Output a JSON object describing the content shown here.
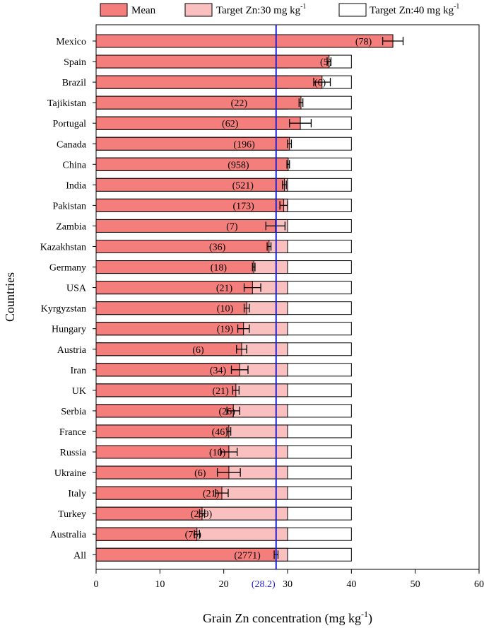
{
  "chart_data": {
    "type": "bar",
    "orientation": "horizontal",
    "xlabel": "Grain Zn concentration (mg kg",
    "xlabel_sup": "-1",
    "xlabel_suffix": ")",
    "ylabel": "Countries",
    "xlim": [
      0,
      60
    ],
    "xticks": [
      0,
      10,
      20,
      30,
      40,
      50,
      60
    ],
    "reference_line": {
      "value": 28.2,
      "label": "(28.2)",
      "color": "#1f1fd6"
    },
    "legend": {
      "placement": "top",
      "items": [
        {
          "name": "Mean",
          "color": "#f47e7b"
        },
        {
          "name": "Target Zn:30 mg kg",
          "sup": "-1",
          "color": "#f9c0bf"
        },
        {
          "name": "Target Zn:40 mg kg",
          "sup": "-1",
          "color": "#ffffff"
        }
      ]
    },
    "targets": [
      30,
      40
    ],
    "colors": {
      "mean": "#f47e7b",
      "target30": "#f9c0bf",
      "target40": "#ffffff",
      "edge": "#000000"
    },
    "categories": [
      "Mexico",
      "Spain",
      "Brazil",
      "Tajikistan",
      "Portugal",
      "Canada",
      "China",
      "India",
      "Pakistan",
      "Zambia",
      "Kazakhstan",
      "Germany",
      "USA",
      "Kyrgyzstan",
      "Hungary",
      "Austria",
      "Iran",
      "UK",
      "Serbia",
      "France",
      "Russia",
      "Ukraine",
      "Italy",
      "Turkey",
      "Australia",
      "All"
    ],
    "means": [
      46.5,
      36.5,
      35.4,
      32.1,
      32.0,
      30.3,
      30.1,
      29.5,
      29.4,
      28.1,
      27.1,
      24.7,
      24.5,
      23.6,
      23.1,
      22.8,
      22.5,
      21.9,
      21.5,
      20.8,
      20.8,
      20.8,
      19.7,
      16.6,
      15.8,
      28.2
    ],
    "errors": [
      1.6,
      0.3,
      1.3,
      0.3,
      1.7,
      0.3,
      0.2,
      0.3,
      0.6,
      1.5,
      0.3,
      0.2,
      1.3,
      0.4,
      0.9,
      0.8,
      1.3,
      0.5,
      1.0,
      0.3,
      1.3,
      1.8,
      1.0,
      0.4,
      0.4,
      0.3
    ],
    "counts": [
      "(78)",
      "(5)",
      "(6)",
      "(22)",
      "(62)",
      "(196)",
      "(958)",
      "(521)",
      "(173)",
      "(7)",
      "(36)",
      "(18)",
      "(21)",
      "(10)",
      "(19)",
      "(6)",
      "(34)",
      "(21)",
      "(26)",
      "(46)",
      "(10)",
      "(6)",
      "(21)",
      "(259)",
      "(76)",
      "(2771)"
    ],
    "count_positions": [
      41.9,
      36.0,
      35.1,
      22.4,
      21.0,
      23.2,
      22.3,
      23.0,
      23.1,
      21.3,
      19.0,
      19.2,
      20.1,
      20.2,
      20.2,
      16.0,
      19.1,
      19.5,
      20.5,
      19.4,
      19.0,
      16.3,
      18.0,
      16.5,
      15.2,
      23.7
    ]
  }
}
